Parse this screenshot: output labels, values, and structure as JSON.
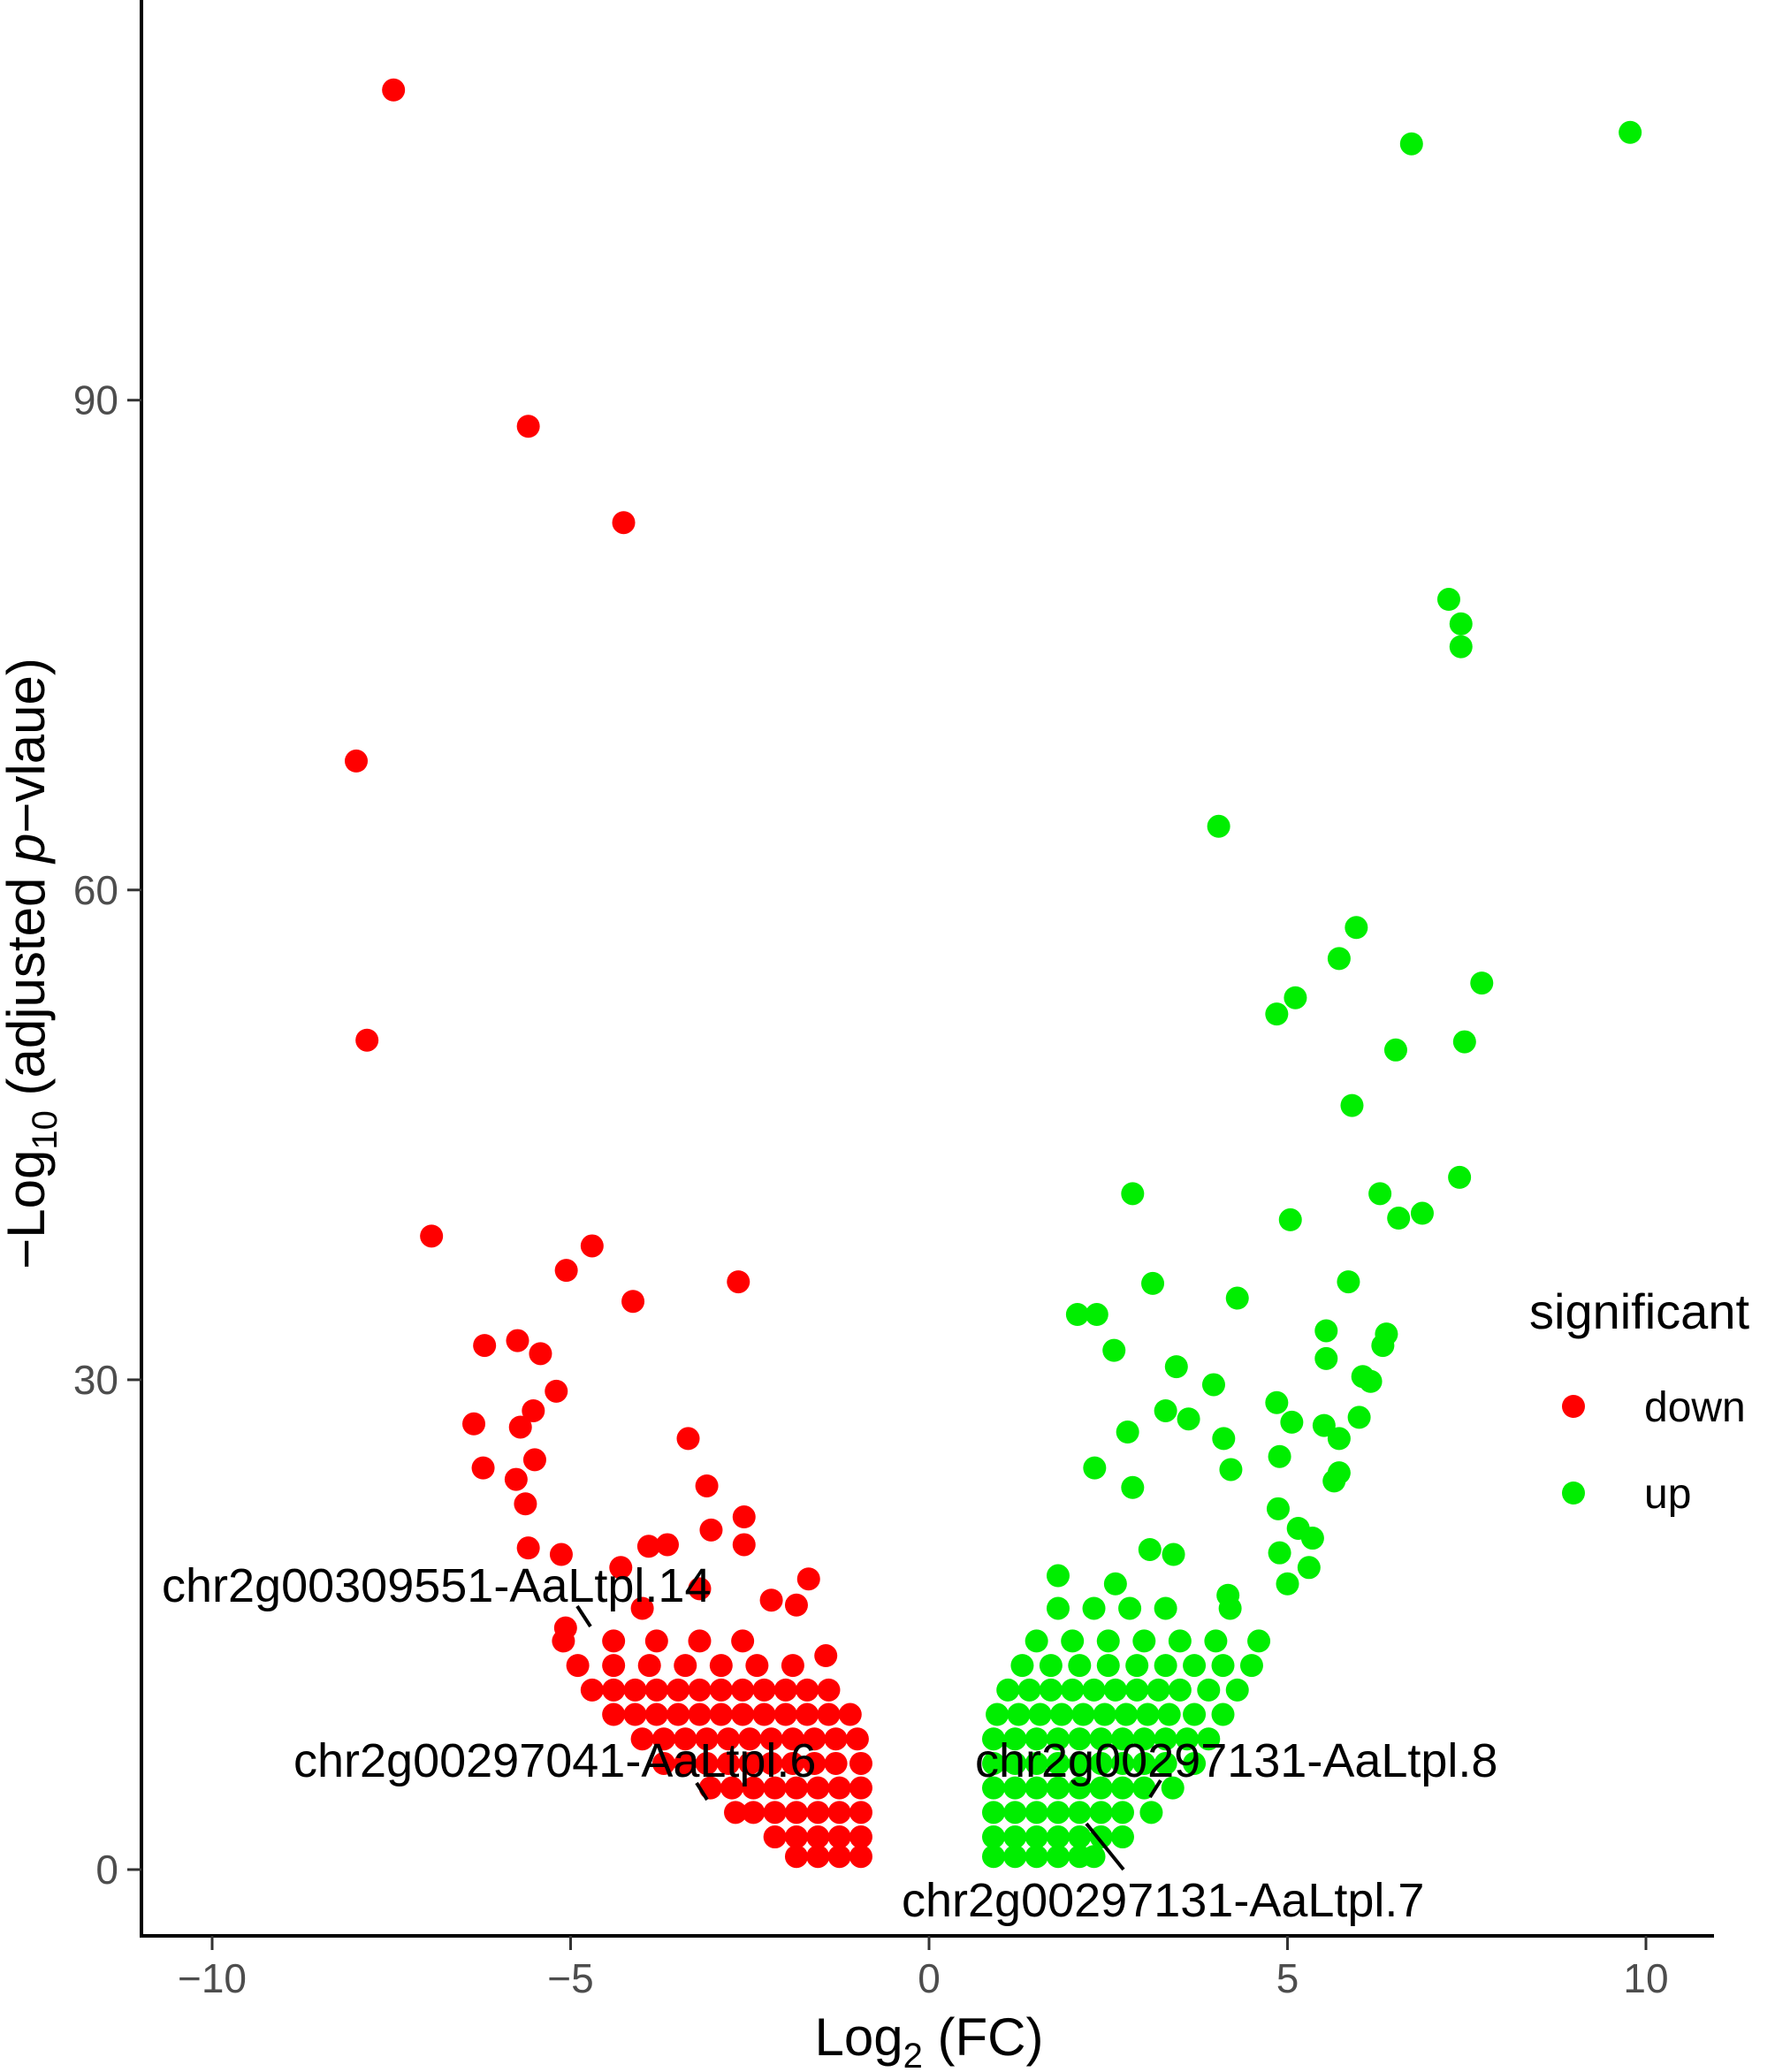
{
  "chart_data": {
    "type": "scatter",
    "title": "",
    "xlabel": "Log2 (FC)",
    "xlabel_parts": {
      "base": "Log",
      "sub": "2",
      "rest": " (FC)"
    },
    "ylabel": "-Log10 (adjusted p-vlaue)",
    "ylabel_parts": {
      "pre": "−Log",
      "sub": "10",
      "mid": " (adjusted ",
      "ital": "p",
      "post": "−vlaue)"
    },
    "xlim": [
      -11,
      11
    ],
    "ylim": [
      -4,
      114
    ],
    "x_ticks": [
      -10,
      -5,
      0,
      5,
      10
    ],
    "x_tick_labels": [
      "−10",
      "−5",
      "0",
      "5",
      "10"
    ],
    "y_ticks": [
      0,
      30,
      60,
      90
    ],
    "y_tick_labels": [
      "0",
      "30",
      "60",
      "90"
    ],
    "grid": false,
    "legend": {
      "title": "significant",
      "placement": "right",
      "entries": [
        {
          "label": "down",
          "color": "#ff0000"
        },
        {
          "label": "up",
          "color": "#00ee00"
        }
      ]
    },
    "series": [
      {
        "name": "down",
        "color": "#ff0000",
        "points": [
          [
            -7.47,
            109.0
          ],
          [
            -5.59,
            88.4
          ],
          [
            -4.26,
            82.5
          ],
          [
            -7.99,
            67.9
          ],
          [
            -7.84,
            50.8
          ],
          [
            -6.94,
            38.8
          ],
          [
            -4.7,
            38.2
          ],
          [
            -5.06,
            36.7
          ],
          [
            -4.13,
            34.8
          ],
          [
            -2.66,
            36.0
          ],
          [
            -6.2,
            32.1
          ],
          [
            -5.74,
            32.4
          ],
          [
            -5.42,
            31.6
          ],
          [
            -5.2,
            29.3
          ],
          [
            -5.52,
            28.1
          ],
          [
            -5.7,
            27.1
          ],
          [
            -6.35,
            27.3
          ],
          [
            -5.5,
            25.1
          ],
          [
            -6.22,
            24.6
          ],
          [
            -5.76,
            23.9
          ],
          [
            -5.63,
            22.4
          ],
          [
            -3.36,
            26.4
          ],
          [
            -3.1,
            23.5
          ],
          [
            -3.04,
            20.8
          ],
          [
            -2.58,
            21.6
          ],
          [
            -2.58,
            19.9
          ],
          [
            -5.59,
            19.7
          ],
          [
            -5.13,
            19.3
          ],
          [
            -3.91,
            19.8
          ],
          [
            -3.65,
            19.9
          ],
          [
            -1.68,
            17.8
          ],
          [
            -1.85,
            16.2
          ],
          [
            -1.44,
            13.1
          ],
          [
            -5.07,
            14.8
          ],
          [
            -4.3,
            18.5
          ],
          [
            -3.2,
            17.2
          ],
          [
            -2.2,
            16.5
          ],
          [
            -4.0,
            16.0
          ],
          [
            -0.95,
            0.8
          ],
          [
            -1.25,
            0.8
          ],
          [
            -1.55,
            0.8
          ],
          [
            -1.85,
            0.8
          ],
          [
            -0.95,
            2
          ],
          [
            -1.25,
            2
          ],
          [
            -1.55,
            2
          ],
          [
            -1.85,
            2
          ],
          [
            -2.15,
            2
          ],
          [
            -0.95,
            3.5
          ],
          [
            -1.25,
            3.5
          ],
          [
            -1.55,
            3.5
          ],
          [
            -1.85,
            3.5
          ],
          [
            -2.15,
            3.5
          ],
          [
            -2.45,
            3.5
          ],
          [
            -2.7,
            3.5
          ],
          [
            -0.95,
            5
          ],
          [
            -1.25,
            5
          ],
          [
            -1.55,
            5
          ],
          [
            -1.85,
            5
          ],
          [
            -2.15,
            5
          ],
          [
            -2.45,
            5
          ],
          [
            -2.75,
            5
          ],
          [
            -3.05,
            5
          ],
          [
            -0.95,
            6.5
          ],
          [
            -1.3,
            6.5
          ],
          [
            -1.6,
            6.5
          ],
          [
            -1.9,
            6.5
          ],
          [
            -2.2,
            6.5
          ],
          [
            -2.5,
            6.5
          ],
          [
            -2.8,
            6.5
          ],
          [
            -3.1,
            6.5
          ],
          [
            -3.4,
            6.5
          ],
          [
            -3.7,
            6.5
          ],
          [
            -1.0,
            8
          ],
          [
            -1.3,
            8
          ],
          [
            -1.6,
            8
          ],
          [
            -1.9,
            8
          ],
          [
            -2.2,
            8
          ],
          [
            -2.5,
            8
          ],
          [
            -2.8,
            8
          ],
          [
            -3.1,
            8
          ],
          [
            -3.4,
            8
          ],
          [
            -3.7,
            8
          ],
          [
            -4.0,
            8
          ],
          [
            -1.1,
            9.5
          ],
          [
            -1.4,
            9.5
          ],
          [
            -1.7,
            9.5
          ],
          [
            -2.0,
            9.5
          ],
          [
            -2.3,
            9.5
          ],
          [
            -2.6,
            9.5
          ],
          [
            -2.9,
            9.5
          ],
          [
            -3.2,
            9.5
          ],
          [
            -3.5,
            9.5
          ],
          [
            -3.8,
            9.5
          ],
          [
            -4.1,
            9.5
          ],
          [
            -4.4,
            9.5
          ],
          [
            -1.4,
            11
          ],
          [
            -1.7,
            11
          ],
          [
            -2.0,
            11
          ],
          [
            -2.3,
            11
          ],
          [
            -2.6,
            11
          ],
          [
            -2.9,
            11
          ],
          [
            -3.2,
            11
          ],
          [
            -3.5,
            11
          ],
          [
            -3.8,
            11
          ],
          [
            -4.1,
            11
          ],
          [
            -4.4,
            11
          ],
          [
            -4.7,
            11
          ],
          [
            -1.9,
            12.5
          ],
          [
            -2.4,
            12.5
          ],
          [
            -2.9,
            12.5
          ],
          [
            -3.4,
            12.5
          ],
          [
            -3.9,
            12.5
          ],
          [
            -4.4,
            12.5
          ],
          [
            -4.9,
            12.5
          ],
          [
            -2.6,
            14
          ],
          [
            -3.2,
            14
          ],
          [
            -3.8,
            14
          ],
          [
            -4.4,
            14
          ],
          [
            -5.1,
            14
          ]
        ]
      },
      {
        "name": "up",
        "color": "#00ee00",
        "points": [
          [
            9.78,
            106.4
          ],
          [
            6.73,
            105.7
          ],
          [
            7.25,
            77.8
          ],
          [
            7.42,
            76.3
          ],
          [
            7.42,
            74.9
          ],
          [
            4.04,
            63.9
          ],
          [
            5.96,
            57.7
          ],
          [
            5.72,
            55.8
          ],
          [
            7.71,
            54.3
          ],
          [
            5.11,
            53.4
          ],
          [
            4.85,
            52.4
          ],
          [
            6.51,
            50.2
          ],
          [
            7.47,
            50.7
          ],
          [
            5.9,
            46.8
          ],
          [
            7.4,
            42.4
          ],
          [
            2.84,
            41.4
          ],
          [
            6.29,
            41.4
          ],
          [
            5.04,
            39.8
          ],
          [
            6.55,
            39.9
          ],
          [
            6.88,
            40.2
          ],
          [
            3.12,
            35.9
          ],
          [
            5.85,
            36.0
          ],
          [
            4.3,
            35.0
          ],
          [
            2.07,
            34.0
          ],
          [
            2.34,
            34.0
          ],
          [
            2.58,
            31.8
          ],
          [
            5.54,
            33.0
          ],
          [
            6.38,
            32.8
          ],
          [
            5.54,
            31.3
          ],
          [
            6.33,
            32.1
          ],
          [
            3.45,
            30.8
          ],
          [
            3.97,
            29.7
          ],
          [
            6.05,
            30.2
          ],
          [
            6.16,
            29.9
          ],
          [
            3.3,
            28.1
          ],
          [
            3.62,
            27.6
          ],
          [
            4.85,
            28.6
          ],
          [
            5.06,
            27.4
          ],
          [
            5.51,
            27.2
          ],
          [
            2.77,
            26.8
          ],
          [
            4.11,
            26.4
          ],
          [
            6.0,
            27.7
          ],
          [
            5.72,
            26.4
          ],
          [
            4.89,
            25.3
          ],
          [
            2.31,
            24.6
          ],
          [
            4.21,
            24.5
          ],
          [
            5.72,
            24.3
          ],
          [
            5.65,
            23.8
          ],
          [
            2.84,
            23.4
          ],
          [
            4.87,
            22.1
          ],
          [
            3.08,
            19.6
          ],
          [
            3.41,
            19.3
          ],
          [
            5.15,
            20.9
          ],
          [
            5.35,
            20.3
          ],
          [
            4.17,
            16.8
          ],
          [
            4.89,
            19.4
          ],
          [
            1.8,
            18.0
          ],
          [
            2.6,
            17.5
          ],
          [
            5.0,
            17.5
          ],
          [
            5.3,
            18.5
          ],
          [
            0.9,
            0.8
          ],
          [
            1.2,
            0.8
          ],
          [
            1.5,
            0.8
          ],
          [
            1.8,
            0.8
          ],
          [
            2.1,
            0.8
          ],
          [
            2.3,
            0.8
          ],
          [
            0.9,
            2
          ],
          [
            1.2,
            2
          ],
          [
            1.5,
            2
          ],
          [
            1.8,
            2
          ],
          [
            2.1,
            2
          ],
          [
            2.4,
            2
          ],
          [
            2.7,
            2
          ],
          [
            0.9,
            3.5
          ],
          [
            1.2,
            3.5
          ],
          [
            1.5,
            3.5
          ],
          [
            1.8,
            3.5
          ],
          [
            2.1,
            3.5
          ],
          [
            2.4,
            3.5
          ],
          [
            2.7,
            3.5
          ],
          [
            3.1,
            3.5
          ],
          [
            0.9,
            5
          ],
          [
            1.2,
            5
          ],
          [
            1.5,
            5
          ],
          [
            1.8,
            5
          ],
          [
            2.1,
            5
          ],
          [
            2.4,
            5
          ],
          [
            2.7,
            5
          ],
          [
            3.0,
            5
          ],
          [
            3.4,
            5
          ],
          [
            0.9,
            6.5
          ],
          [
            1.2,
            6.5
          ],
          [
            1.5,
            6.5
          ],
          [
            1.8,
            6.5
          ],
          [
            2.1,
            6.5
          ],
          [
            2.4,
            6.5
          ],
          [
            2.7,
            6.5
          ],
          [
            3.0,
            6.5
          ],
          [
            3.3,
            6.5
          ],
          [
            3.7,
            6.5
          ],
          [
            0.9,
            8
          ],
          [
            1.2,
            8
          ],
          [
            1.5,
            8
          ],
          [
            1.8,
            8
          ],
          [
            2.1,
            8
          ],
          [
            2.4,
            8
          ],
          [
            2.7,
            8
          ],
          [
            3.0,
            8
          ],
          [
            3.3,
            8
          ],
          [
            3.6,
            8
          ],
          [
            3.9,
            8
          ],
          [
            0.95,
            9.5
          ],
          [
            1.25,
            9.5
          ],
          [
            1.55,
            9.5
          ],
          [
            1.85,
            9.5
          ],
          [
            2.15,
            9.5
          ],
          [
            2.45,
            9.5
          ],
          [
            2.75,
            9.5
          ],
          [
            3.05,
            9.5
          ],
          [
            3.35,
            9.5
          ],
          [
            3.7,
            9.5
          ],
          [
            4.1,
            9.5
          ],
          [
            1.1,
            11
          ],
          [
            1.4,
            11
          ],
          [
            1.7,
            11
          ],
          [
            2.0,
            11
          ],
          [
            2.3,
            11
          ],
          [
            2.6,
            11
          ],
          [
            2.9,
            11
          ],
          [
            3.2,
            11
          ],
          [
            3.5,
            11
          ],
          [
            3.9,
            11
          ],
          [
            4.3,
            11
          ],
          [
            1.3,
            12.5
          ],
          [
            1.7,
            12.5
          ],
          [
            2.1,
            12.5
          ],
          [
            2.5,
            12.5
          ],
          [
            2.9,
            12.5
          ],
          [
            3.3,
            12.5
          ],
          [
            3.7,
            12.5
          ],
          [
            4.1,
            12.5
          ],
          [
            4.5,
            12.5
          ],
          [
            1.5,
            14
          ],
          [
            2.0,
            14
          ],
          [
            2.5,
            14
          ],
          [
            3.0,
            14
          ],
          [
            3.5,
            14
          ],
          [
            4.0,
            14
          ],
          [
            4.6,
            14
          ],
          [
            1.8,
            16
          ],
          [
            2.3,
            16
          ],
          [
            2.8,
            16
          ],
          [
            3.3,
            16
          ],
          [
            4.2,
            16
          ]
        ]
      }
    ],
    "annotations": [
      {
        "text": "chr2g00309551-AaLtpl.14",
        "point": [
          -4.85,
          14.0
        ]
      },
      {
        "text": "chr2g00297041-AaLtpl.6",
        "point": [
          -3.1,
          4.2
        ]
      },
      {
        "text": "chr2g00297131-AaLtpl.8",
        "point": [
          3.1,
          4.5
        ]
      },
      {
        "text": "chr2g00297131-AaLtpl.7",
        "point": [
          2.2,
          2.8
        ]
      }
    ]
  }
}
